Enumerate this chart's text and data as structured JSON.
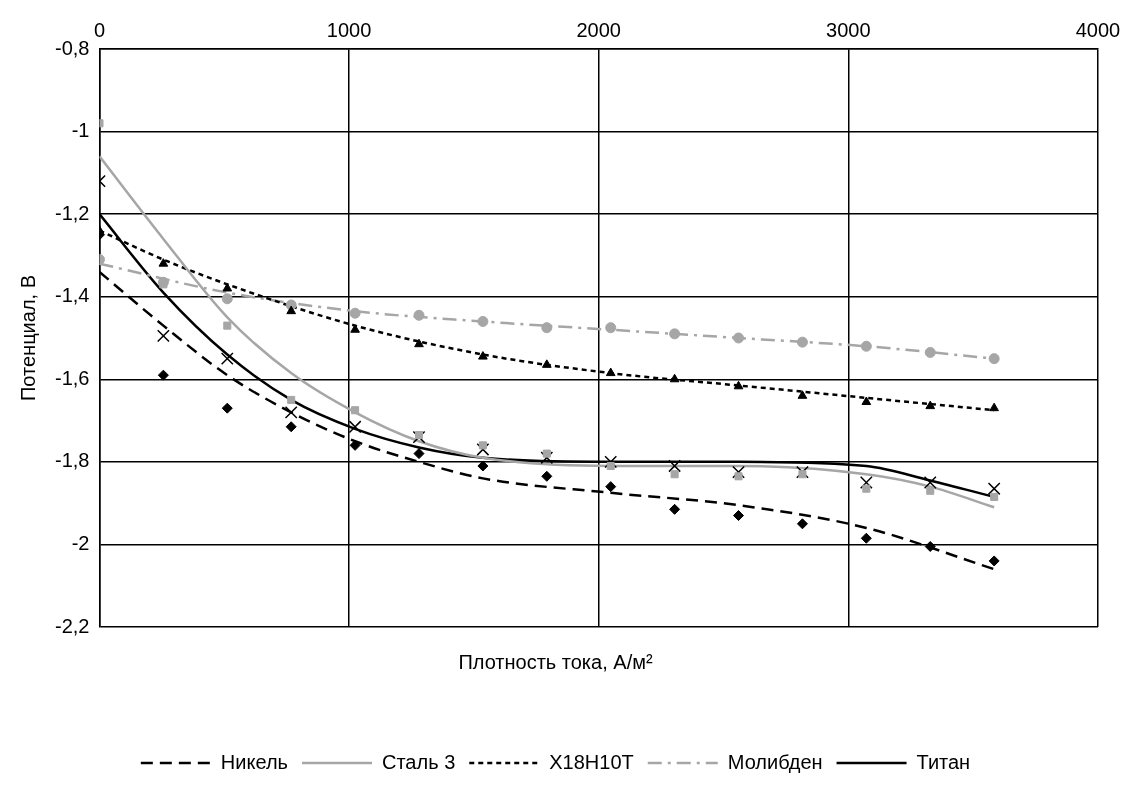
{
  "chart_data": {
    "type": "scatter",
    "xlabel": "Плотность тока, А/м²",
    "ylabel": "Потенциал, В",
    "xlim": [
      0,
      4000
    ],
    "xticks": [
      0,
      1000,
      2000,
      3000,
      4000
    ],
    "ylim": [
      -2.2,
      -0.8
    ],
    "yticks": [
      {
        "value": -2.2,
        "label": "-2,2"
      },
      -2,
      {
        "value": -1.8,
        "label": "-1,8"
      },
      {
        "value": -1.6,
        "label": "-1,6"
      },
      {
        "value": -1.4,
        "label": "-1,4"
      },
      {
        "value": -1.2,
        "label": "-1,2"
      },
      -1,
      {
        "value": -0.8,
        "label": "-0,8"
      }
    ],
    "grid": true,
    "legend": "bottom",
    "series": [
      {
        "name": "Никель",
        "type": "line",
        "color": "#000000",
        "line_style": "dashed",
        "marker": "none",
        "x": [
          0,
          256,
          512,
          768,
          1024,
          1280,
          1536,
          2048,
          2560,
          3072,
          3584
        ],
        "values": [
          -1.34,
          -1.47,
          -1.59,
          -1.68,
          -1.75,
          -1.8,
          -1.84,
          -1.875,
          -1.905,
          -1.96,
          -2.06
        ]
      },
      {
        "name": "Сталь 3",
        "type": "line",
        "color": "#a6a6a6",
        "line_style": "solid",
        "marker": "none",
        "x": [
          0,
          256,
          512,
          768,
          1024,
          1280,
          1536,
          2048,
          2560,
          3072,
          3328,
          3584
        ],
        "values": [
          -1.06,
          -1.26,
          -1.45,
          -1.585,
          -1.68,
          -1.75,
          -1.79,
          -1.81,
          -1.81,
          -1.83,
          -1.86,
          -1.91
        ]
      },
      {
        "name": "Х18Н10Т",
        "type": "line",
        "color": "#000000",
        "line_style": "dotted",
        "marker": "none",
        "x": [
          0,
          256,
          512,
          1024,
          1536,
          2048,
          2560,
          3072,
          3584
        ],
        "values": [
          -1.24,
          -1.31,
          -1.37,
          -1.47,
          -1.54,
          -1.585,
          -1.615,
          -1.645,
          -1.675
        ]
      },
      {
        "name": "Молибден",
        "type": "line",
        "color": "#a6a6a6",
        "line_style": "dashdot",
        "marker": "none",
        "x": [
          0,
          512,
          1024,
          1536,
          2048,
          2560,
          3072,
          3584
        ],
        "values": [
          -1.32,
          -1.39,
          -1.435,
          -1.46,
          -1.48,
          -1.5,
          -1.52,
          -1.55
        ]
      },
      {
        "name": "Титан",
        "type": "line",
        "color": "#000000",
        "line_style": "solid",
        "marker": "none",
        "x": [
          0,
          256,
          512,
          768,
          1024,
          1280,
          1536,
          2048,
          2560,
          3072,
          3328,
          3584
        ],
        "values": [
          -1.2,
          -1.39,
          -1.54,
          -1.65,
          -1.72,
          -1.765,
          -1.79,
          -1.8,
          -1.8,
          -1.81,
          -1.845,
          -1.885
        ]
      },
      {
        "type": "scatter",
        "color": "#000000",
        "marker": "diamond",
        "x": [
          0,
          256,
          512,
          768,
          1024,
          1280,
          1536,
          1792,
          2048,
          2304,
          2560,
          2816,
          3072,
          3328,
          3584
        ],
        "values": [
          -1.25,
          -1.59,
          -1.67,
          -1.715,
          -1.76,
          -1.78,
          -1.81,
          -1.835,
          -1.86,
          -1.915,
          -1.93,
          -1.95,
          -1.985,
          -2.005,
          -2.04
        ]
      },
      {
        "type": "scatter",
        "color": "#a6a6a6",
        "marker": "square",
        "x": [
          0,
          256,
          512,
          768,
          1024,
          1280,
          1536,
          1792,
          2048,
          2304,
          2560,
          2816,
          3072,
          3328,
          3584
        ],
        "values": [
          -0.98,
          -1.37,
          -1.47,
          -1.65,
          -1.675,
          -1.735,
          -1.76,
          -1.78,
          -1.81,
          -1.83,
          -1.835,
          -1.83,
          -1.865,
          -1.87,
          -1.885
        ]
      },
      {
        "type": "scatter",
        "color": "#000000",
        "marker": "triangle",
        "x": [
          0,
          256,
          512,
          768,
          1024,
          1280,
          1536,
          1792,
          2048,
          2304,
          2560,
          2816,
          3072,
          3328,
          3584
        ],
        "values": [
          -1.24,
          -1.32,
          -1.38,
          -1.435,
          -1.48,
          -1.515,
          -1.545,
          -1.565,
          -1.585,
          -1.6,
          -1.617,
          -1.64,
          -1.655,
          -1.665,
          -1.67
        ]
      },
      {
        "type": "scatter",
        "color": "#a6a6a6",
        "marker": "circle",
        "x": [
          0,
          256,
          512,
          768,
          1024,
          1280,
          1536,
          1792,
          2048,
          2304,
          2560,
          2816,
          3072,
          3328,
          3584
        ],
        "values": [
          -1.31,
          -1.365,
          -1.405,
          -1.42,
          -1.44,
          -1.445,
          -1.46,
          -1.475,
          -1.475,
          -1.49,
          -1.5,
          -1.51,
          -1.52,
          -1.535,
          -1.55
        ]
      },
      {
        "type": "scatter",
        "color": "#000000",
        "marker": "cross",
        "x": [
          0,
          256,
          512,
          768,
          1024,
          1280,
          1536,
          1792,
          2048,
          2304,
          2560,
          2816,
          3072,
          3328,
          3584
        ],
        "values": [
          -1.12,
          -1.495,
          -1.55,
          -1.68,
          -1.715,
          -1.74,
          -1.77,
          -1.79,
          -1.8,
          -1.81,
          -1.825,
          -1.825,
          -1.85,
          -1.85,
          -1.865
        ]
      }
    ]
  }
}
